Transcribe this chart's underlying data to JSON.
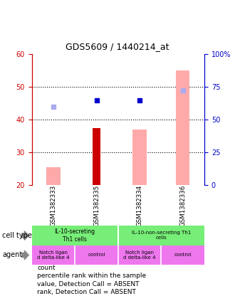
{
  "title": "GDS5609 / 1440214_at",
  "samples": [
    "GSM1382333",
    "GSM1382335",
    "GSM1382334",
    "GSM1382336"
  ],
  "ylim_left": [
    20,
    60
  ],
  "ylim_right": [
    0,
    100
  ],
  "yticks_left": [
    20,
    30,
    40,
    50,
    60
  ],
  "yticks_right": [
    0,
    25,
    50,
    75,
    100
  ],
  "yticklabels_right": [
    "0",
    "25",
    "50",
    "75",
    "100%"
  ],
  "bar_values": [
    null,
    37.5,
    null,
    null
  ],
  "bar_color": "#cc0000",
  "pink_bar_values": [
    25.5,
    null,
    37.0,
    55.0
  ],
  "pink_bar_color": "#ffaaaa",
  "blue_square_values": [
    null,
    46.0,
    46.0,
    null
  ],
  "blue_square_color": "#0000cc",
  "lavender_square_values": [
    44.0,
    null,
    null,
    49.0
  ],
  "lavender_square_color": "#aaaaee",
  "legend_items": [
    {
      "label": "count",
      "color": "#cc0000"
    },
    {
      "label": "percentile rank within the sample",
      "color": "#0000cc"
    },
    {
      "label": "value, Detection Call = ABSENT",
      "color": "#ffaaaa"
    },
    {
      "label": "rank, Detection Call = ABSENT",
      "color": "#aaaaee"
    }
  ],
  "left_axis_color": "#cc0000",
  "right_axis_color": "#0000cc",
  "bg_color": "#cccccc",
  "plot_bg_color": "#ffffff",
  "cell_color": "#77ee77",
  "agent_color": "#ee77ee",
  "arrow_color": "#888888"
}
